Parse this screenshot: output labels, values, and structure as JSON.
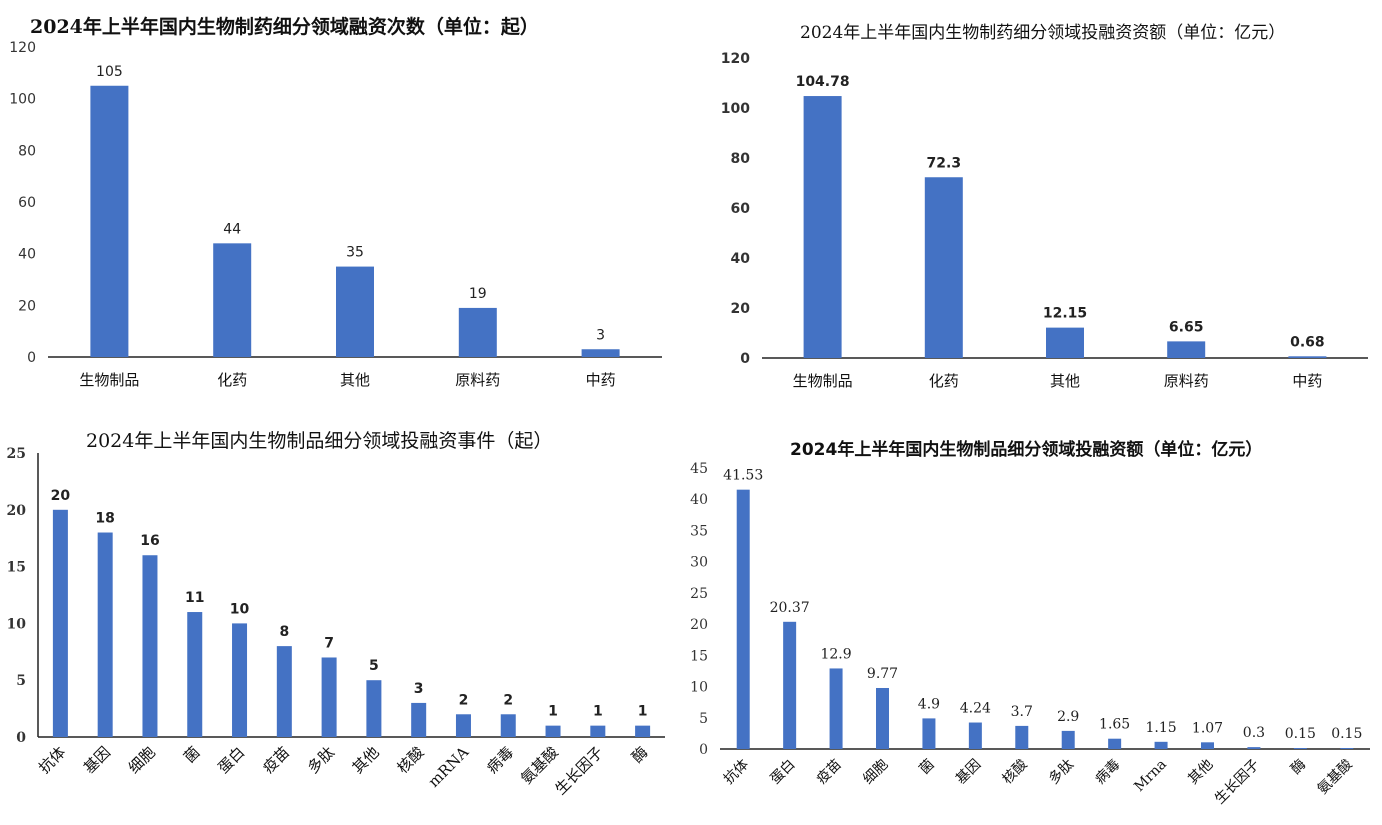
{
  "chart_data": [
    {
      "type": "bar",
      "title": "2024年上半年国内生物制药细分领域融资次数（单位：起）",
      "categories": [
        "生物制品",
        "化药",
        "其他",
        "原料药",
        "中药"
      ],
      "values": [
        105,
        44,
        35,
        19,
        3
      ],
      "data_labels": [
        "105",
        "44",
        "35",
        "19",
        "3"
      ],
      "ylim": [
        0,
        120
      ],
      "yticks": [
        "0",
        "20",
        "40",
        "60",
        "80",
        "100",
        "120"
      ],
      "xlabel": "",
      "ylabel": "",
      "grid": false,
      "legend": "none",
      "bar_color": "#4472C4"
    },
    {
      "type": "bar",
      "title": "2024年上半年国内生物制药细分领域投融资资额（单位：亿元）",
      "categories": [
        "生物制品",
        "化药",
        "其他",
        "原料药",
        "中药"
      ],
      "values": [
        104.78,
        72.3,
        12.15,
        6.65,
        0.68
      ],
      "data_labels": [
        "104.78",
        "72.3",
        "12.15",
        "6.65",
        "0.68"
      ],
      "ylim": [
        0,
        120
      ],
      "yticks": [
        "0",
        "20",
        "40",
        "60",
        "80",
        "100",
        "120"
      ],
      "xlabel": "",
      "ylabel": "",
      "grid": false,
      "legend": "none",
      "bar_color": "#4472C4"
    },
    {
      "type": "bar",
      "title": "2024年上半年国内生物制品细分领域投融资事件（起）",
      "categories": [
        "抗体",
        "基因",
        "细胞",
        "菌",
        "蛋白",
        "疫苗",
        "多肽",
        "其他",
        "核酸",
        "mRNA",
        "病毒",
        "氨基酸",
        "生长因子",
        "酶"
      ],
      "values": [
        20,
        18,
        16,
        11,
        10,
        8,
        7,
        5,
        3,
        2,
        2,
        1,
        1,
        1
      ],
      "data_labels": [
        "20",
        "18",
        "16",
        "11",
        "10",
        "8",
        "7",
        "5",
        "3",
        "2",
        "2",
        "1",
        "1",
        "1"
      ],
      "ylim": [
        0,
        25
      ],
      "yticks": [
        "0",
        "5",
        "10",
        "15",
        "20",
        "25"
      ],
      "xlabel": "",
      "ylabel": "",
      "grid": false,
      "legend": "none",
      "bar_color": "#4472C4"
    },
    {
      "type": "bar",
      "title": "2024年上半年国内生物制品细分领域投融资额（单位：亿元）",
      "categories": [
        "抗体",
        "蛋白",
        "疫苗",
        "细胞",
        "菌",
        "基因",
        "核酸",
        "多肽",
        "病毒",
        "Mrna",
        "其他",
        "生长因子",
        "酶",
        "氨基酸"
      ],
      "values": [
        41.53,
        20.37,
        12.9,
        9.77,
        4.9,
        4.24,
        3.7,
        2.9,
        1.65,
        1.15,
        1.07,
        0.3,
        0.15,
        0.15
      ],
      "data_labels": [
        "41.53",
        "20.37",
        "12.9",
        "9.77",
        "4.9",
        "4.24",
        "3.7",
        "2.9",
        "1.65",
        "1.15",
        "1.07",
        "0.3",
        "0.15",
        "0.15"
      ],
      "ylim": [
        0,
        45
      ],
      "yticks": [
        "0",
        "5",
        "10",
        "15",
        "20",
        "25",
        "30",
        "35",
        "40",
        "45"
      ],
      "xlabel": "",
      "ylabel": "",
      "grid": false,
      "legend": "none",
      "bar_color": "#4472C4"
    }
  ]
}
